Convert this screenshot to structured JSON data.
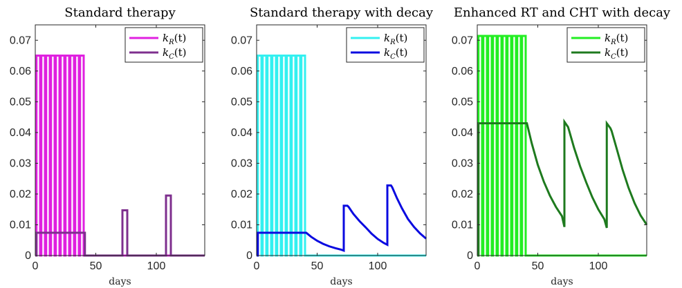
{
  "chart_data": [
    {
      "type": "line",
      "title": "Standard therapy",
      "xlabel": "days",
      "xlim": [
        0,
        140
      ],
      "ylim": [
        0,
        0.075
      ],
      "x_ticks": [
        0,
        50,
        100
      ],
      "y_ticks": [
        0,
        0.01,
        0.02,
        0.03,
        0.04,
        0.05,
        0.06,
        0.07
      ],
      "x_tick_labels": [
        "0",
        "50",
        "100"
      ],
      "y_tick_labels": [
        "0",
        "0.01",
        "0.02",
        "0.03",
        "0.04",
        "0.05",
        "0.06",
        "0.07"
      ],
      "grid": false,
      "legend_position": "top-right",
      "series": [
        {
          "name": "k_R(t)",
          "legend": {
            "base": "k",
            "sub": "R",
            "tail": "(t)"
          },
          "color": "#E020E0",
          "x": [
            0,
            1,
            1,
            4,
            4,
            5,
            5,
            8,
            8,
            9,
            9,
            12,
            12,
            13,
            13,
            16,
            16,
            17,
            17,
            20,
            20,
            21,
            21,
            24,
            24,
            25,
            25,
            28,
            28,
            29,
            29,
            32,
            32,
            33,
            33,
            36,
            36,
            37,
            37,
            40,
            40,
            140
          ],
          "y": [
            0,
            0,
            0.065,
            0.065,
            0,
            0,
            0.065,
            0.065,
            0,
            0,
            0.065,
            0.065,
            0,
            0,
            0.065,
            0.065,
            0,
            0,
            0.065,
            0.065,
            0,
            0,
            0.065,
            0.065,
            0,
            0,
            0.065,
            0.065,
            0,
            0,
            0.065,
            0.065,
            0,
            0,
            0.065,
            0.065,
            0,
            0,
            0.065,
            0.065,
            0,
            0
          ]
        },
        {
          "name": "k_C(t)",
          "legend": {
            "base": "k",
            "sub": "C",
            "tail": "(t)"
          },
          "color": "#7E2F8E",
          "x": [
            0,
            1,
            1,
            41,
            41,
            72,
            72,
            76,
            76,
            108,
            108,
            112,
            112,
            140
          ],
          "y": [
            0,
            0,
            0.0074,
            0.0074,
            0,
            0,
            0.0147,
            0.0147,
            0,
            0,
            0.0195,
            0.0195,
            0,
            0
          ]
        }
      ]
    },
    {
      "type": "line",
      "title": "Standard therapy with decay",
      "xlabel": "days",
      "xlim": [
        0,
        140
      ],
      "ylim": [
        0,
        0.075
      ],
      "x_ticks": [
        0,
        50,
        100
      ],
      "y_ticks": [
        0,
        0.01,
        0.02,
        0.03,
        0.04,
        0.05,
        0.06,
        0.07
      ],
      "x_tick_labels": [
        "0",
        "50",
        "100"
      ],
      "y_tick_labels": [
        "0",
        "0.01",
        "0.02",
        "0.03",
        "0.04",
        "0.05",
        "0.06",
        "0.07"
      ],
      "grid": false,
      "legend_position": "top-right",
      "series": [
        {
          "name": "k_R(t)",
          "legend": {
            "base": "k",
            "sub": "R",
            "tail": "(t)"
          },
          "color": "#33F0F0",
          "x": [
            0,
            1,
            1,
            4,
            4,
            5,
            5,
            8,
            8,
            9,
            9,
            12,
            12,
            13,
            13,
            16,
            16,
            17,
            17,
            20,
            20,
            21,
            21,
            24,
            24,
            25,
            25,
            28,
            28,
            29,
            29,
            32,
            32,
            33,
            33,
            36,
            36,
            37,
            37,
            40,
            40,
            140
          ],
          "y": [
            0,
            0,
            0.065,
            0.065,
            0,
            0,
            0.065,
            0.065,
            0,
            0,
            0.065,
            0.065,
            0,
            0,
            0.065,
            0.065,
            0,
            0,
            0.065,
            0.065,
            0,
            0,
            0.065,
            0.065,
            0,
            0,
            0.065,
            0.065,
            0,
            0,
            0.065,
            0.065,
            0,
            0,
            0.065,
            0.065,
            0,
            0,
            0.065,
            0.065,
            0,
            0
          ]
        },
        {
          "name": "k_C(t)",
          "legend": {
            "base": "k",
            "sub": "C",
            "tail": "(t)"
          },
          "color": "#0A0AE0",
          "x": [
            0,
            1,
            1,
            41,
            45,
            50,
            55,
            60,
            65,
            70,
            72,
            72,
            75,
            76,
            80,
            85,
            90,
            95,
            100,
            105,
            108,
            108,
            111,
            112,
            116,
            120,
            125,
            130,
            135,
            140
          ],
          "y": [
            0,
            0,
            0.0074,
            0.0074,
            0.0061,
            0.0048,
            0.0038,
            0.003,
            0.0024,
            0.0019,
            0.0016,
            0.0162,
            0.0162,
            0.0158,
            0.0135,
            0.0112,
            0.0092,
            0.0071,
            0.0054,
            0.0041,
            0.0035,
            0.0228,
            0.0228,
            0.0222,
            0.0186,
            0.0154,
            0.0119,
            0.0093,
            0.0072,
            0.0055
          ]
        }
      ]
    },
    {
      "type": "line",
      "title": "Enhanced RT and CHT with decay",
      "xlabel": "days",
      "xlim": [
        0,
        140
      ],
      "ylim": [
        0,
        0.075
      ],
      "x_ticks": [
        0,
        50,
        100
      ],
      "y_ticks": [
        0,
        0.01,
        0.02,
        0.03,
        0.04,
        0.05,
        0.06,
        0.07
      ],
      "x_tick_labels": [
        "0",
        "50",
        "100"
      ],
      "y_tick_labels": [
        "0",
        "0.01",
        "0.02",
        "0.03",
        "0.04",
        "0.05",
        "0.06",
        "0.07"
      ],
      "grid": false,
      "legend_position": "top-right",
      "series": [
        {
          "name": "k_R(t)",
          "legend": {
            "base": "k",
            "sub": "R",
            "tail": "(t)"
          },
          "color": "#22EE22",
          "x": [
            0,
            1,
            1,
            4,
            4,
            5,
            5,
            8,
            8,
            9,
            9,
            12,
            12,
            13,
            13,
            16,
            16,
            17,
            17,
            20,
            20,
            21,
            21,
            24,
            24,
            25,
            25,
            28,
            28,
            29,
            29,
            32,
            32,
            33,
            33,
            36,
            36,
            37,
            37,
            40,
            40,
            140
          ],
          "y": [
            0,
            0,
            0.0714,
            0.0714,
            0,
            0,
            0.0714,
            0.0714,
            0,
            0,
            0.0714,
            0.0714,
            0,
            0,
            0.0714,
            0.0714,
            0,
            0,
            0.0714,
            0.0714,
            0,
            0,
            0.0714,
            0.0714,
            0,
            0,
            0.0714,
            0.0714,
            0,
            0,
            0.0714,
            0.0714,
            0,
            0,
            0.0714,
            0.0714,
            0,
            0,
            0.0714,
            0.0714,
            0,
            0
          ]
        },
        {
          "name": "k_C(t)",
          "legend": {
            "base": "k",
            "sub": "C",
            "tail": "(t)"
          },
          "color": "#1E7A1E",
          "x": [
            0,
            1,
            1,
            41,
            45,
            50,
            55,
            60,
            65,
            70,
            72,
            72,
            75,
            76,
            80,
            85,
            90,
            95,
            100,
            105,
            107,
            107,
            110,
            111,
            115,
            120,
            125,
            130,
            135,
            140
          ],
          "y": [
            0,
            0,
            0.043,
            0.043,
            0.0365,
            0.0295,
            0.024,
            0.0195,
            0.0158,
            0.0128,
            0.0093,
            0.0435,
            0.0418,
            0.0405,
            0.035,
            0.029,
            0.0238,
            0.019,
            0.015,
            0.0118,
            0.009,
            0.043,
            0.0414,
            0.0405,
            0.035,
            0.028,
            0.022,
            0.017,
            0.013,
            0.01
          ]
        }
      ]
    }
  ]
}
